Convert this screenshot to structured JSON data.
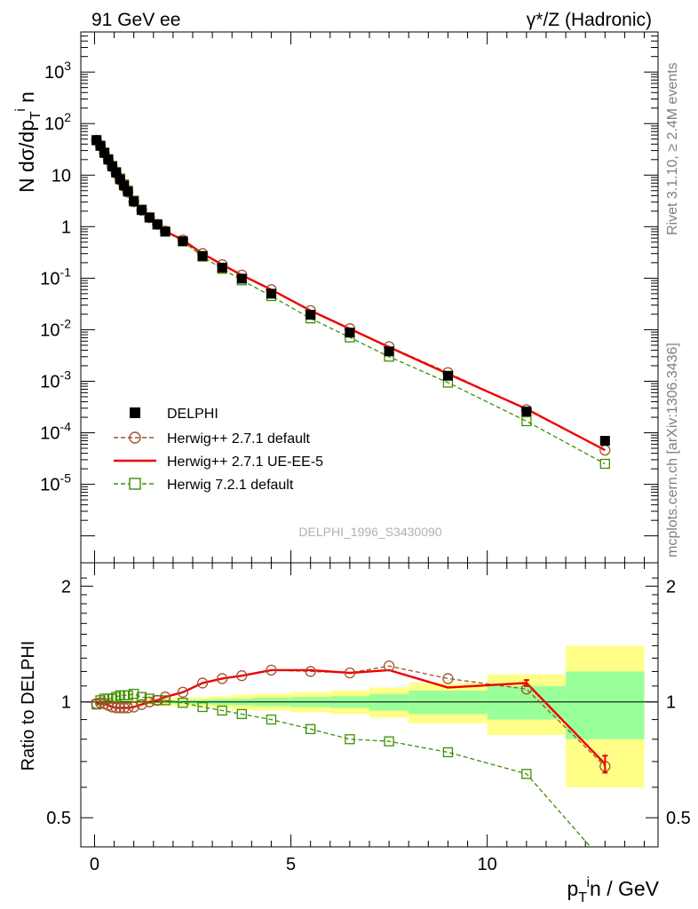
{
  "header": {
    "left_title": "91 GeV ee",
    "right_title": "γ*/Z (Hadronic)"
  },
  "side_labels": {
    "rivet": "Rivet 3.1.10, ≥ 2.4M events",
    "mcplots": "mcplots.cern.ch [arXiv:1306.3436]"
  },
  "watermark": "DELPHI_1996_S3430090",
  "axes": {
    "main_ylabel": "N dσ/dp_T^i n",
    "ratio_ylabel": "Ratio to DELPHI",
    "xlabel": "p_T^i n / GeV",
    "x_ticks": [
      "0",
      "5",
      "10"
    ],
    "main_y_ticks": [
      "10^-5",
      "10^-4",
      "10^-3",
      "10^-2",
      "10^-1",
      "1",
      "10",
      "10^2",
      "10^3"
    ],
    "ratio_y_ticks": [
      "0.5",
      "1",
      "2"
    ]
  },
  "legend": {
    "entries": [
      {
        "label": "DELPHI",
        "color": "#000000",
        "marker": "filled-square"
      },
      {
        "label": "Herwig++ 2.7.1 default",
        "color": "#a0522d",
        "marker": "open-circle"
      },
      {
        "label": "Herwig++ 2.7.1 UE-EE-5",
        "color": "#ee0000",
        "marker": "line"
      },
      {
        "label": "Herwig 7.2.1 default",
        "color": "#3d8f00",
        "marker": "open-square"
      }
    ]
  },
  "chart_data": {
    "type": "scatter",
    "x_scale": "linear",
    "y_scale": "log",
    "xlim": [
      -0.35,
      14.35
    ],
    "ylim": [
      3e-07,
      6000
    ],
    "ratio_ylim": [
      0.42,
      2.3
    ],
    "x": [
      0.05,
      0.15,
      0.25,
      0.35,
      0.45,
      0.55,
      0.65,
      0.75,
      0.85,
      1.0,
      1.2,
      1.4,
      1.6,
      1.8,
      2.25,
      2.75,
      3.25,
      3.75,
      4.5,
      5.5,
      6.5,
      7.5,
      9.0,
      11.0,
      13.0
    ],
    "series": [
      {
        "name": "DELPHI",
        "values": [
          48,
          37,
          27,
          20,
          14.8,
          11.2,
          8.3,
          6.3,
          4.8,
          3.1,
          2.1,
          1.5,
          1.1,
          0.8,
          0.52,
          0.27,
          0.16,
          0.098,
          0.05,
          0.0195,
          0.0088,
          0.0038,
          0.00128,
          0.00026,
          7e-05
        ]
      },
      {
        "name": "Herwig++ 2.7.1 default",
        "values": [
          47.5,
          37,
          27,
          19.8,
          14.5,
          10.9,
          8.05,
          6.1,
          4.65,
          3.05,
          2.08,
          1.5,
          1.11,
          0.82,
          0.55,
          0.3,
          0.183,
          0.115,
          0.06,
          0.0235,
          0.0105,
          0.0047,
          0.00147,
          0.00028,
          4.6e-05
        ]
      },
      {
        "name": "Herwig++ 2.7.1 UE-EE-5",
        "values": [
          47.6,
          37,
          27,
          19.8,
          14.5,
          10.9,
          8.05,
          6.1,
          4.65,
          3.05,
          2.08,
          1.5,
          1.11,
          0.82,
          0.55,
          0.3,
          0.183,
          0.115,
          0.06,
          0.0235,
          0.0104,
          0.0046,
          0.00139,
          0.00029,
          4.6e-05
        ]
      },
      {
        "name": "Herwig 7.2.1 default",
        "values": [
          47.3,
          37.4,
          27.5,
          20.4,
          15.1,
          11.5,
          8.6,
          6.6,
          5.0,
          3.2,
          2.15,
          1.52,
          1.11,
          0.81,
          0.52,
          0.262,
          0.152,
          0.091,
          0.045,
          0.0166,
          0.0071,
          0.003,
          0.00094,
          0.000168,
          2.5e-05
        ]
      }
    ],
    "ratio": {
      "x": [
        0.05,
        0.15,
        0.25,
        0.35,
        0.45,
        0.55,
        0.65,
        0.75,
        0.85,
        1.0,
        1.2,
        1.4,
        1.6,
        1.8,
        2.25,
        2.75,
        3.25,
        3.75,
        4.5,
        5.5,
        6.5,
        7.5,
        9.0,
        11.0,
        13.0
      ],
      "herwig_pp_default": [
        0.99,
        0.995,
        0.99,
        0.98,
        0.97,
        0.965,
        0.965,
        0.965,
        0.965,
        0.97,
        0.985,
        1.0,
        1.01,
        1.03,
        1.06,
        1.12,
        1.15,
        1.17,
        1.21,
        1.2,
        1.19,
        1.24,
        1.15,
        1.08,
        0.68
      ],
      "ue_ee_5": [
        0.99,
        0.995,
        0.99,
        0.98,
        0.97,
        0.965,
        0.965,
        0.965,
        0.965,
        0.97,
        0.985,
        1.0,
        1.01,
        1.03,
        1.06,
        1.12,
        1.15,
        1.17,
        1.21,
        1.21,
        1.19,
        1.21,
        1.09,
        1.12,
        0.69
      ],
      "ue_ee_5_x": [
        0.05,
        0.15,
        0.25,
        0.35,
        0.45,
        0.55,
        0.65,
        0.75,
        0.85,
        1.0,
        1.2,
        1.4,
        1.6,
        1.8,
        2.25,
        2.75,
        3.25,
        3.75,
        4.5,
        5.5,
        6.5,
        7.5,
        9.0,
        11.0,
        13.0
      ],
      "herwig7_default": [
        0.985,
        1.01,
        1.02,
        1.02,
        1.02,
        1.03,
        1.04,
        1.04,
        1.04,
        1.05,
        1.03,
        1.02,
        1.01,
        1.01,
        0.995,
        0.97,
        0.95,
        0.93,
        0.9,
        0.85,
        0.8,
        0.79,
        0.74,
        0.65,
        0.38
      ]
    },
    "ratio_bands": {
      "edges": [
        0.0,
        0.1,
        0.2,
        0.3,
        0.4,
        0.5,
        0.6,
        0.7,
        0.8,
        0.9,
        1.1,
        1.3,
        1.5,
        1.7,
        2.0,
        2.5,
        3.0,
        3.5,
        4.0,
        5.0,
        6.0,
        7.0,
        8.0,
        10.0,
        12.0,
        14.0
      ],
      "stat_half": [
        0.004,
        0.004,
        0.004,
        0.004,
        0.005,
        0.005,
        0.005,
        0.005,
        0.006,
        0.006,
        0.006,
        0.007,
        0.008,
        0.009,
        0.011,
        0.014,
        0.017,
        0.02,
        0.025,
        0.03,
        0.035,
        0.05,
        0.07,
        0.1,
        0.2
      ],
      "total_half": [
        0.01,
        0.01,
        0.01,
        0.01,
        0.012,
        0.012,
        0.012,
        0.012,
        0.014,
        0.015,
        0.015,
        0.018,
        0.02,
        0.022,
        0.025,
        0.03,
        0.035,
        0.045,
        0.05,
        0.06,
        0.07,
        0.09,
        0.12,
        0.18,
        0.4
      ]
    }
  }
}
